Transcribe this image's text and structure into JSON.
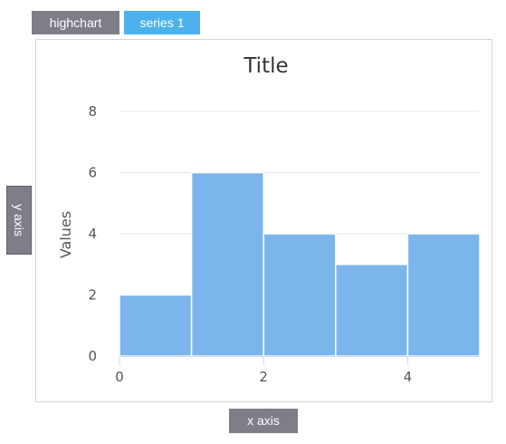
{
  "toolbar": {
    "highchart_label": "highchart",
    "series_label": "series 1"
  },
  "axis_buttons": {
    "y_label": "y axis",
    "x_label": "x axis"
  },
  "colors": {
    "bar": "#7cb5ec",
    "tab_inactive": "#7e7e88",
    "tab_active": "#4db1ee",
    "grid": "#e6e6e6"
  },
  "chart_data": {
    "type": "bar",
    "title": "Title",
    "xlabel": "",
    "ylabel": "Values",
    "bins": [
      {
        "x0": 0,
        "x1": 1,
        "value": 2
      },
      {
        "x0": 1,
        "x1": 2,
        "value": 6
      },
      {
        "x0": 2,
        "x1": 3,
        "value": 4
      },
      {
        "x0": 3,
        "x1": 4,
        "value": 3
      },
      {
        "x0": 4,
        "x1": 5,
        "value": 4
      }
    ],
    "xlim": [
      0,
      5
    ],
    "ylim": [
      0,
      8
    ],
    "x_ticks": [
      0,
      2,
      4
    ],
    "y_ticks": [
      0,
      2,
      4,
      6,
      8
    ],
    "grid": true,
    "legend": "none"
  }
}
